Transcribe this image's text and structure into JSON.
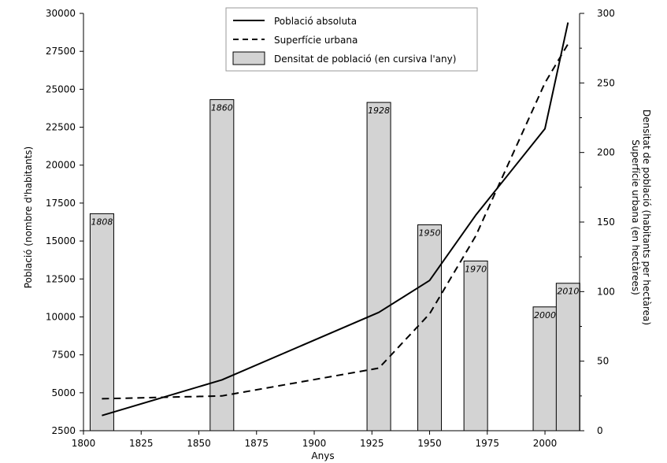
{
  "chart_data": {
    "type": "bar+line",
    "xlabel": "Anys",
    "ylabel_left": "Població (nombre d'habitants)",
    "ylabel_right_line1": "Superfície urbana (en hectàrees)",
    "ylabel_right_line2": "Densitat de població (habitants per hectàrea)",
    "xlim": [
      1800,
      2015
    ],
    "ylim_left": [
      2500,
      30000
    ],
    "ylim_right": [
      0,
      300
    ],
    "x_ticks": [
      1800,
      1825,
      1850,
      1875,
      1900,
      1925,
      1950,
      1975,
      2000
    ],
    "y_left_ticks": [
      2500,
      5000,
      7500,
      10000,
      12500,
      15000,
      17500,
      20000,
      22500,
      25000,
      27500,
      30000
    ],
    "y_right_ticks": [
      0,
      50,
      100,
      150,
      200,
      250,
      300
    ],
    "grid": false,
    "legend_position": "top-center",
    "legend": [
      {
        "label": "Població absoluta",
        "style": "solid-line"
      },
      {
        "label": "Superfície urbana",
        "style": "dashed-line"
      },
      {
        "label": "Densitat de població (en cursiva l'any)",
        "style": "gray-box"
      }
    ],
    "bars": {
      "name": "Densitat de població (en cursiva l'any)",
      "axis": "right",
      "color": "#d3d3d3",
      "data": [
        {
          "year": 1808,
          "value": 156,
          "label": "1808"
        },
        {
          "year": 1860,
          "value": 238,
          "label": "1860"
        },
        {
          "year": 1928,
          "value": 236,
          "label": "1928"
        },
        {
          "year": 1950,
          "value": 148,
          "label": "1950"
        },
        {
          "year": 1970,
          "value": 122,
          "label": "1970"
        },
        {
          "year": 2000,
          "value": 89,
          "label": "2000"
        },
        {
          "year": 2010,
          "value": 106,
          "label": "2010"
        }
      ]
    },
    "series": [
      {
        "name": "Població absoluta",
        "axis": "left",
        "style": "solid",
        "x": [
          1808,
          1860,
          1928,
          1950,
          1970,
          2000,
          2010
        ],
        "y": [
          3500,
          5850,
          10300,
          12400,
          16700,
          22400,
          29400
        ]
      },
      {
        "name": "Superfície urbana",
        "axis": "right",
        "style": "dashed",
        "x": [
          1808,
          1860,
          1928,
          1950,
          1970,
          2000,
          2010
        ],
        "y": [
          23,
          25,
          45,
          84,
          140,
          250,
          278
        ]
      }
    ]
  }
}
